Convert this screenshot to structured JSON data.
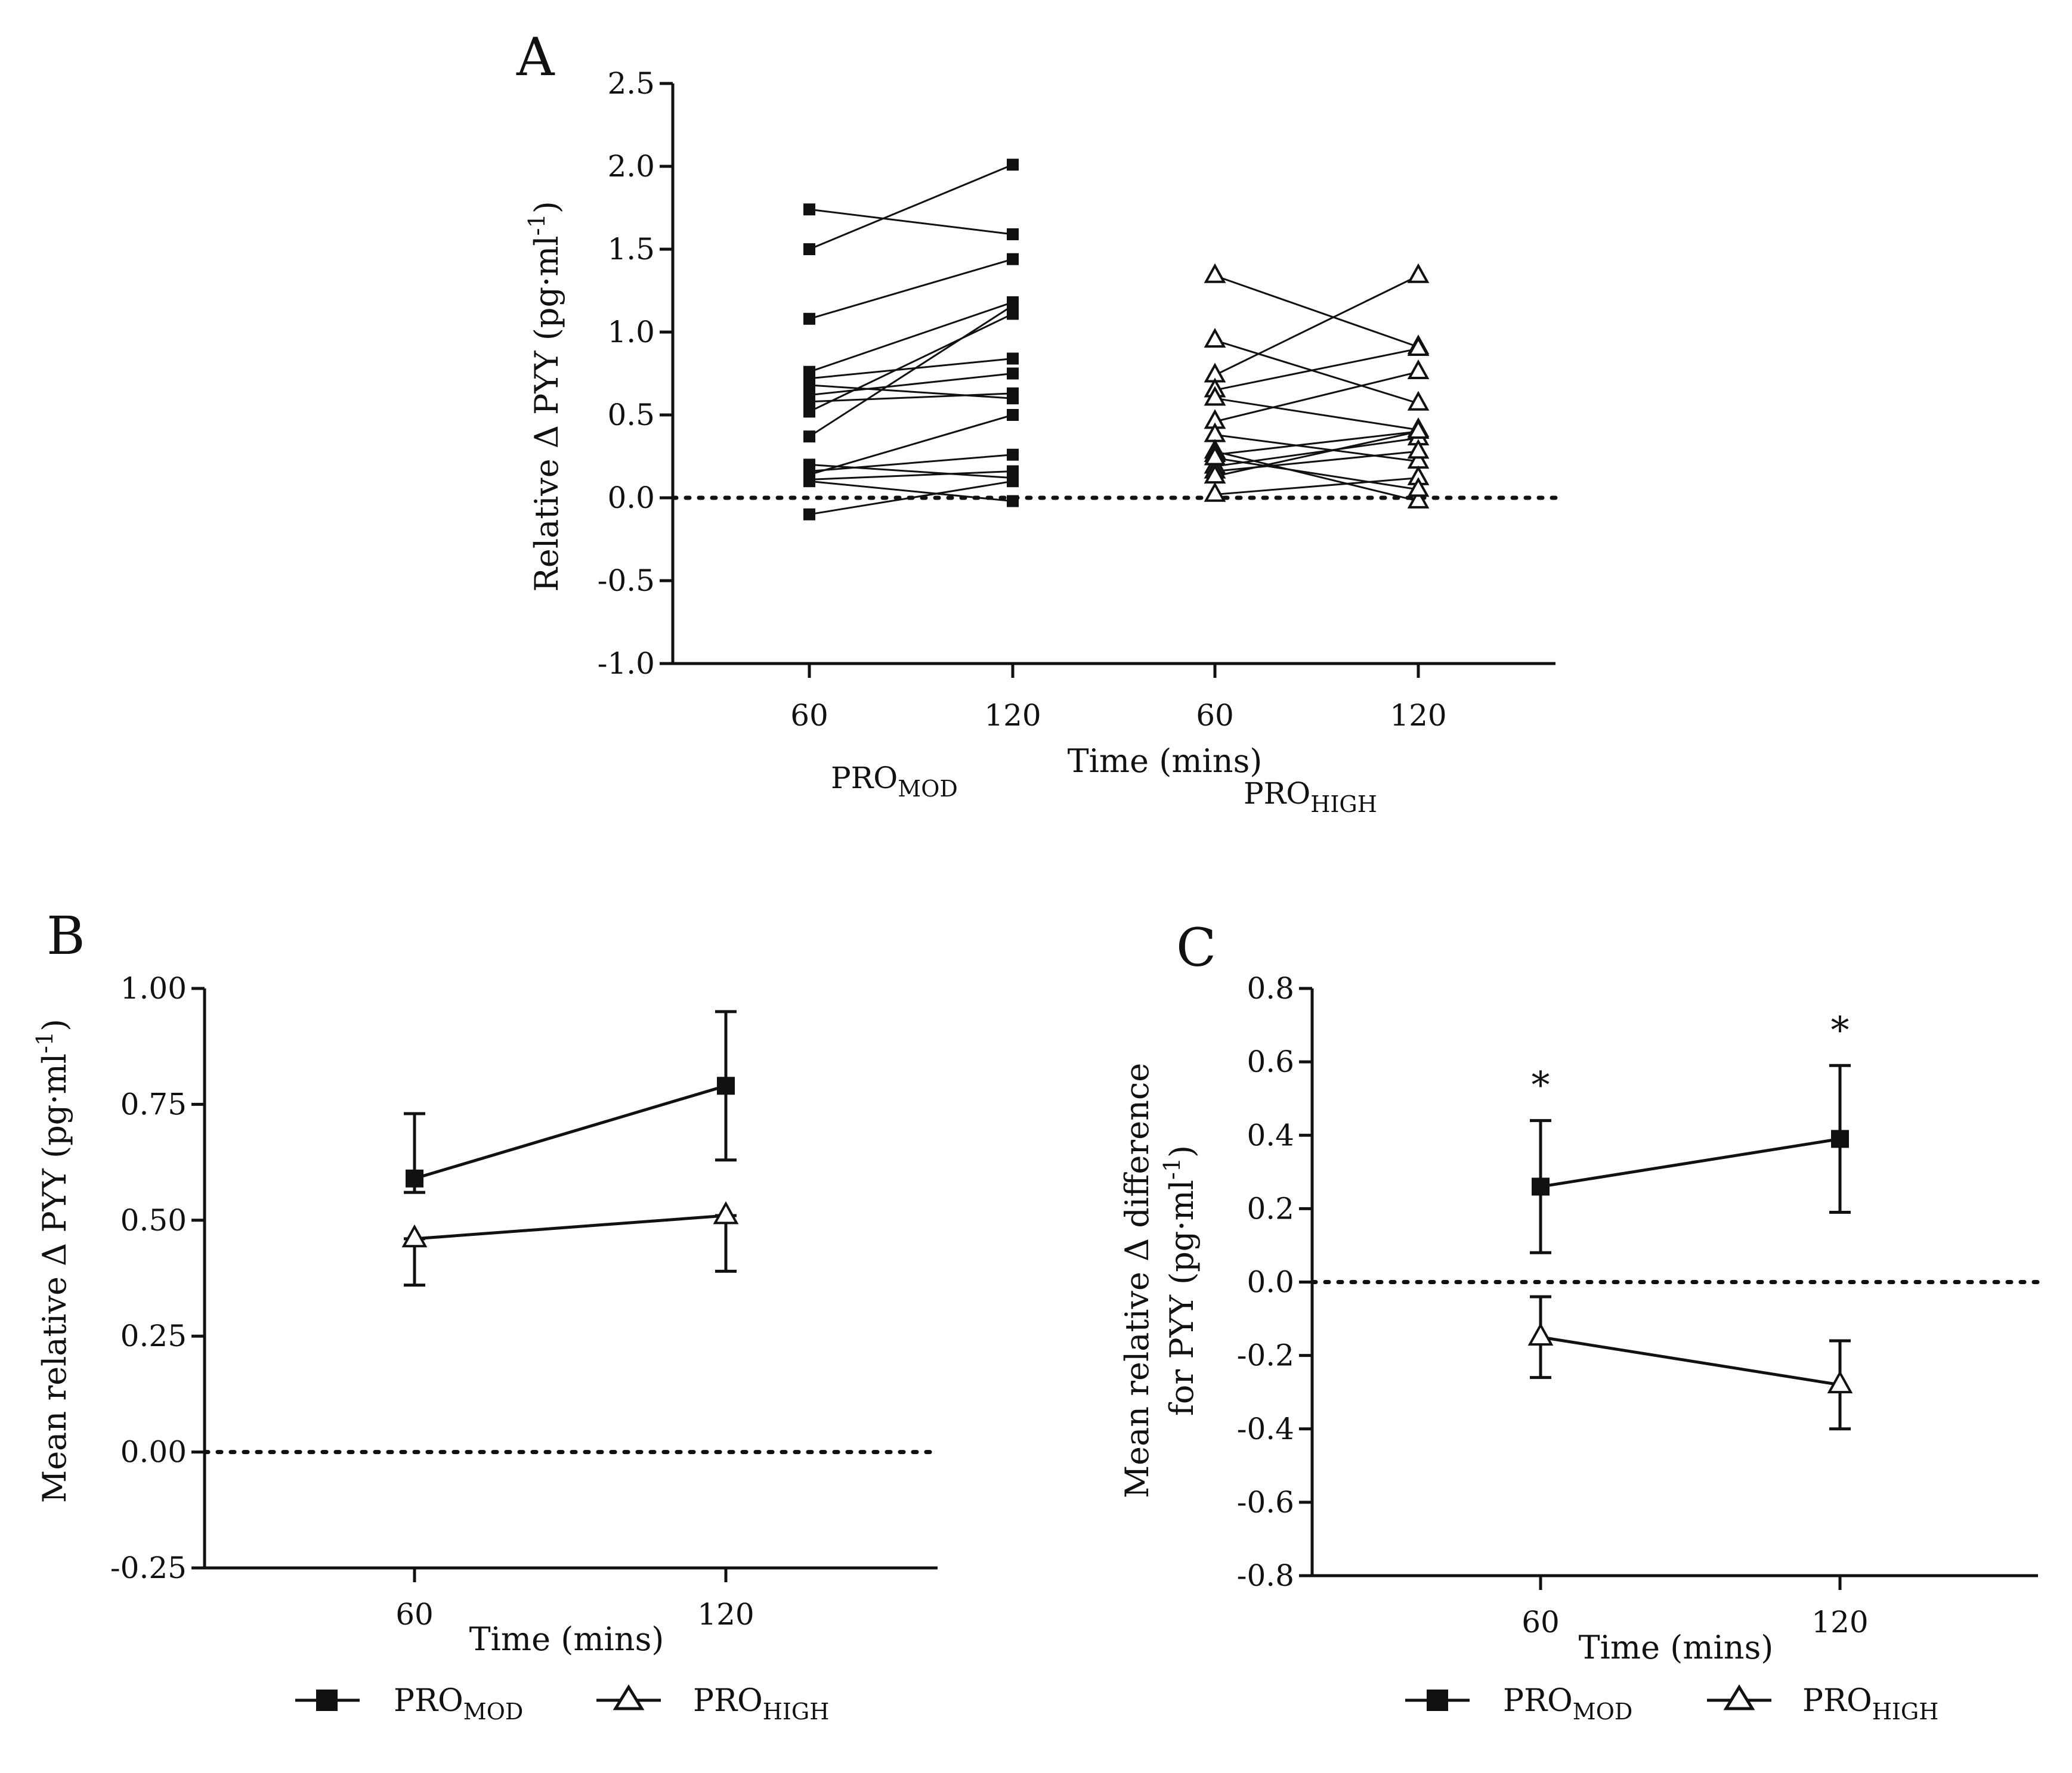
{
  "colors": {
    "ink": "#111111",
    "background": "#ffffff",
    "open_marker_fill": "#ffffff"
  },
  "panels": {
    "A": {
      "letter": "A",
      "xlabel": "Time (mins)",
      "ylabel": "Relative Δ PYY (pg·ml",
      "ylabel_sup": "-1",
      "ylabel_end": ")",
      "group_mod": {
        "base": "PRO",
        "sub": "MOD"
      },
      "group_high": {
        "base": "PRO",
        "sub": "HIGH"
      }
    },
    "B": {
      "letter": "B",
      "xlabel": "Time (mins)",
      "ylabel": "Mean relative Δ PYY (pg·ml",
      "ylabel_sup": "-1",
      "ylabel_end": ")",
      "legend": [
        {
          "base": "PRO",
          "sub": "MOD",
          "marker": "square-filled"
        },
        {
          "base": "PRO",
          "sub": "HIGH",
          "marker": "triangle-open"
        }
      ]
    },
    "C": {
      "letter": "C",
      "xlabel": "Time (mins)",
      "ylabel_line1": "Mean relative Δ difference",
      "ylabel_line2": "for PYY (pg·ml",
      "ylabel_sup": "-1",
      "ylabel_end": ")",
      "significance_mark": "*",
      "legend": [
        {
          "base": "PRO",
          "sub": "MOD",
          "marker": "square-filled"
        },
        {
          "base": "PRO",
          "sub": "HIGH",
          "marker": "triangle-open"
        }
      ]
    }
  },
  "chart_data": [
    {
      "id": "A",
      "type": "line",
      "title": "",
      "xlabel": "Time (mins)",
      "ylabel": "Relative Δ PYY (pg·ml-1)",
      "ylim": [
        -1.0,
        2.5
      ],
      "yticks": [
        "2.5",
        "2.0",
        "1.5",
        "1.0",
        "0.5",
        "0.0",
        "-0.5",
        "-1.0"
      ],
      "ytick_values": [
        2.5,
        2.0,
        1.5,
        1.0,
        0.5,
        0.0,
        -0.5,
        -1.0
      ],
      "x_categories": [
        "60",
        "120",
        "60",
        "120"
      ],
      "reference_line": 0.0,
      "groups": [
        {
          "name": "PRO MOD",
          "marker": "square-filled",
          "pairs": [
            [
              1.74,
              1.59
            ],
            [
              1.5,
              2.01
            ],
            [
              1.08,
              1.44
            ],
            [
              0.76,
              1.18
            ],
            [
              0.72,
              0.84
            ],
            [
              0.68,
              0.6
            ],
            [
              0.62,
              0.75
            ],
            [
              0.58,
              0.63
            ],
            [
              0.52,
              1.11
            ],
            [
              0.37,
              1.16
            ],
            [
              0.2,
              0.12
            ],
            [
              0.16,
              0.26
            ],
            [
              0.14,
              0.5
            ],
            [
              0.11,
              0.16
            ],
            [
              0.1,
              -0.02
            ],
            [
              -0.1,
              0.1
            ]
          ]
        },
        {
          "name": "PRO HIGH",
          "marker": "triangle-open",
          "pairs": [
            [
              1.34,
              0.91
            ],
            [
              0.95,
              0.57
            ],
            [
              0.74,
              1.34
            ],
            [
              0.65,
              0.9
            ],
            [
              0.6,
              0.41
            ],
            [
              0.46,
              0.76
            ],
            [
              0.38,
              0.22
            ],
            [
              0.28,
              -0.02
            ],
            [
              0.26,
              0.4
            ],
            [
              0.19,
              0.36
            ],
            [
              0.16,
              0.28
            ],
            [
              0.13,
              0.4
            ],
            [
              0.02,
              0.12
            ],
            [
              0.24,
              0.05
            ]
          ]
        }
      ]
    },
    {
      "id": "B",
      "type": "line",
      "title": "",
      "xlabel": "Time (mins)",
      "ylabel": "Mean relative Δ PYY (pg·ml-1)",
      "ylim": [
        -0.25,
        1.0
      ],
      "yticks": [
        "1.00",
        "0.75",
        "0.50",
        "0.25",
        "0.00",
        "-0.25"
      ],
      "ytick_values": [
        1.0,
        0.75,
        0.5,
        0.25,
        0.0,
        -0.25
      ],
      "x": [
        "60",
        "120"
      ],
      "reference_line": 0.0,
      "series": [
        {
          "name": "PRO MOD",
          "marker": "square-filled",
          "values": [
            0.59,
            0.79
          ],
          "err_upper": [
            0.73,
            0.95
          ],
          "err_lower": [
            0.56,
            0.63
          ]
        },
        {
          "name": "PRO HIGH",
          "marker": "triangle-open",
          "values": [
            0.46,
            0.51
          ],
          "err_upper": [
            0.46,
            0.51
          ],
          "err_lower": [
            0.36,
            0.39
          ]
        }
      ]
    },
    {
      "id": "C",
      "type": "line",
      "title": "",
      "xlabel": "Time (mins)",
      "ylabel": "Mean relative Δ difference for PYY (pg·ml-1)",
      "ylim": [
        -0.8,
        0.8
      ],
      "yticks": [
        "0.8",
        "0.6",
        "0.4",
        "0.2",
        "0.0",
        "-0.2",
        "-0.4",
        "-0.6",
        "-0.8"
      ],
      "ytick_values": [
        0.8,
        0.6,
        0.4,
        0.2,
        0.0,
        -0.2,
        -0.4,
        -0.6,
        -0.8
      ],
      "x": [
        "60",
        "120"
      ],
      "reference_line": 0.0,
      "annotations": [
        "*",
        "*"
      ],
      "series": [
        {
          "name": "PRO MOD",
          "marker": "square-filled",
          "values": [
            0.26,
            0.39
          ],
          "err_upper": [
            0.44,
            0.59
          ],
          "err_lower": [
            0.08,
            0.19
          ]
        },
        {
          "name": "PRO HIGH",
          "marker": "triangle-open",
          "values": [
            -0.15,
            -0.28
          ],
          "err_upper": [
            -0.04,
            -0.16
          ],
          "err_lower": [
            -0.26,
            -0.4
          ]
        }
      ]
    }
  ]
}
